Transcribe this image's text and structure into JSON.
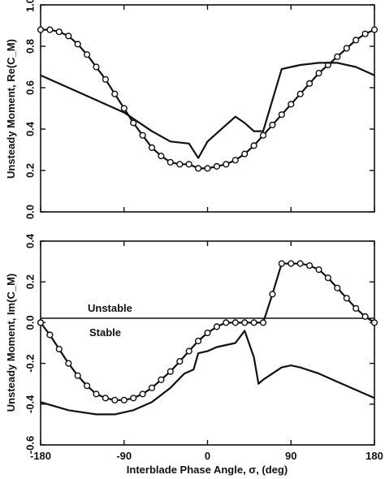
{
  "chart_data": [
    {
      "type": "line",
      "title": "",
      "xlabel": "",
      "ylabel": "Unsteady Moment, Re(C_M)",
      "xlim": [
        -180,
        180
      ],
      "ylim": [
        0,
        1.0
      ],
      "grid": false,
      "xticks": [
        "-180",
        "-90",
        "0",
        "90",
        "180"
      ],
      "yticks": [
        "0.0",
        "0.2",
        "0.4",
        "0.6",
        "0.8",
        "1.0"
      ],
      "series": [
        {
          "name": "",
          "style": "line-with-circle-markers",
          "x": [
            -180,
            -170,
            -160,
            -150,
            -140,
            -130,
            -120,
            -110,
            -100,
            -90,
            -80,
            -70,
            -60,
            -50,
            -40,
            -30,
            -20,
            -10,
            0,
            10,
            20,
            30,
            40,
            50,
            60,
            70,
            80,
            90,
            100,
            110,
            120,
            130,
            140,
            150,
            160,
            170,
            180
          ],
          "y": [
            0.88,
            0.88,
            0.87,
            0.85,
            0.81,
            0.76,
            0.7,
            0.64,
            0.57,
            0.5,
            0.43,
            0.37,
            0.31,
            0.27,
            0.24,
            0.23,
            0.23,
            0.21,
            0.21,
            0.22,
            0.23,
            0.25,
            0.28,
            0.32,
            0.37,
            0.42,
            0.47,
            0.52,
            0.57,
            0.62,
            0.67,
            0.71,
            0.75,
            0.79,
            0.83,
            0.86,
            0.88
          ]
        },
        {
          "name": "",
          "style": "line",
          "x": [
            -180,
            -150,
            -120,
            -90,
            -60,
            -40,
            -20,
            -10,
            -5,
            0,
            10,
            30,
            40,
            50,
            60,
            70,
            80,
            90,
            100,
            120,
            140,
            160,
            180
          ],
          "y": [
            0.66,
            0.6,
            0.54,
            0.48,
            0.39,
            0.34,
            0.33,
            0.26,
            0.3,
            0.34,
            0.38,
            0.46,
            0.43,
            0.39,
            0.39,
            0.54,
            0.69,
            0.7,
            0.71,
            0.72,
            0.72,
            0.7,
            0.66
          ]
        }
      ]
    },
    {
      "type": "line",
      "title": "",
      "xlabel": "Interblade Phase Angle, σ, (deg)",
      "ylabel": "Unsteady Moment, Im(C_M)",
      "xlim": [
        -180,
        180
      ],
      "ylim": [
        -0.6,
        0.4
      ],
      "grid": false,
      "xticks": [
        "-180",
        "-90",
        "0",
        "90",
        "180"
      ],
      "yticks": [
        "-0.6",
        "-0.4",
        "-0.2",
        "0.0",
        "0.2",
        "0.4"
      ],
      "annotations": [
        {
          "text": "Unstable",
          "x": -135,
          "y": 0.03
        },
        {
          "text": "Stable",
          "x": -135,
          "y": -0.05
        }
      ],
      "series": [
        {
          "name": "",
          "style": "line-with-circle-markers",
          "x": [
            -180,
            -170,
            -160,
            -150,
            -140,
            -130,
            -120,
            -110,
            -100,
            -90,
            -80,
            -70,
            -60,
            -50,
            -40,
            -30,
            -20,
            -10,
            0,
            10,
            20,
            30,
            40,
            50,
            60,
            70,
            80,
            90,
            100,
            110,
            120,
            130,
            140,
            150,
            160,
            170,
            180
          ],
          "y": [
            0.0,
            -0.06,
            -0.13,
            -0.2,
            -0.26,
            -0.31,
            -0.35,
            -0.37,
            -0.38,
            -0.38,
            -0.37,
            -0.35,
            -0.32,
            -0.28,
            -0.24,
            -0.19,
            -0.14,
            -0.09,
            -0.05,
            -0.02,
            0.0,
            0.0,
            0.0,
            0.0,
            0.0,
            0.14,
            0.29,
            0.29,
            0.29,
            0.28,
            0.26,
            0.22,
            0.17,
            0.12,
            0.07,
            0.03,
            0.0
          ]
        },
        {
          "name": "",
          "style": "line",
          "x": [
            -180,
            -150,
            -120,
            -100,
            -80,
            -60,
            -40,
            -25,
            -20,
            -15,
            -10,
            0,
            10,
            20,
            30,
            40,
            50,
            55,
            60,
            70,
            80,
            90,
            100,
            120,
            140,
            160,
            180
          ],
          "y": [
            -0.39,
            -0.43,
            -0.45,
            -0.45,
            -0.43,
            -0.39,
            -0.32,
            -0.25,
            -0.24,
            -0.23,
            -0.15,
            -0.14,
            -0.12,
            -0.11,
            -0.1,
            -0.04,
            -0.17,
            -0.3,
            -0.28,
            -0.25,
            -0.22,
            -0.21,
            -0.22,
            -0.25,
            -0.29,
            -0.33,
            -0.37
          ]
        }
      ]
    }
  ]
}
